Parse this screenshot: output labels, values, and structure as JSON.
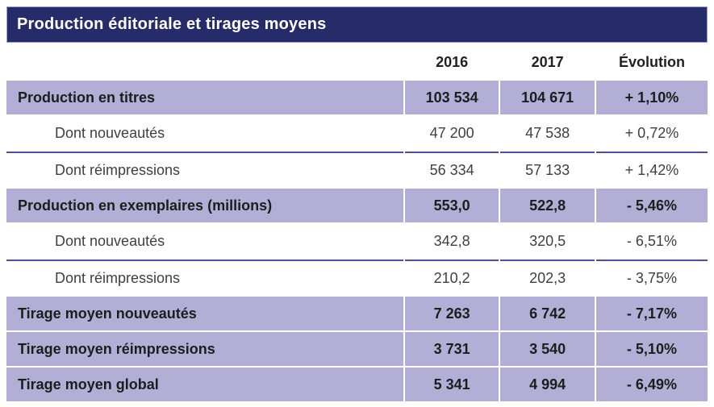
{
  "title": "Production éditoriale et tirages moyens",
  "colors": {
    "title_bar_bg": "#262c6a",
    "highlight_row_bg": "#b2aed6",
    "divider_line": "#4d4f99",
    "text": "#231f20"
  },
  "table": {
    "columns": [
      "",
      "2016",
      "2017",
      "Évolution"
    ],
    "rows": [
      {
        "label": "Production en titres",
        "v2016": "103 534",
        "v2017": "104 671",
        "evolution": "+ 1,10%"
      },
      {
        "label": "Dont nouveautés",
        "v2016": "47 200",
        "v2017": "47 538",
        "evolution": "+ 0,72%"
      },
      {
        "label": "Dont réimpressions",
        "v2016": "56 334",
        "v2017": "57 133",
        "evolution": "+ 1,42%"
      },
      {
        "label": "Production en exemplaires (millions)",
        "v2016": "553,0",
        "v2017": "522,8",
        "evolution": "- 5,46%"
      },
      {
        "label": "Dont nouveautés",
        "v2016": "342,8",
        "v2017": "320,5",
        "evolution": "- 6,51%"
      },
      {
        "label": "Dont réimpressions",
        "v2016": "210,2",
        "v2017": "202,3",
        "evolution": "- 3,75%"
      },
      {
        "label": "Tirage moyen nouveautés",
        "v2016": "7 263",
        "v2017": "6 742",
        "evolution": "- 7,17%"
      },
      {
        "label": "Tirage moyen réimpressions",
        "v2016": "3 731",
        "v2017": "3 540",
        "evolution": "- 5,10%"
      },
      {
        "label": "Tirage moyen global",
        "v2016": "5 341",
        "v2017": "4 994",
        "evolution": "- 6,49%"
      }
    ]
  },
  "chart_data": {
    "type": "table",
    "title": "Production éditoriale et tirages moyens",
    "columns": [
      "2016",
      "2017",
      "Évolution"
    ],
    "rows": [
      {
        "label": "Production en titres",
        "2016": 103534,
        "2017": 104671,
        "evolution_pct": 1.1
      },
      {
        "label": "Dont nouveautés (titres)",
        "2016": 47200,
        "2017": 47538,
        "evolution_pct": 0.72
      },
      {
        "label": "Dont réimpressions (titres)",
        "2016": 56334,
        "2017": 57133,
        "evolution_pct": 1.42
      },
      {
        "label": "Production en exemplaires (millions)",
        "2016": 553.0,
        "2017": 522.8,
        "evolution_pct": -5.46
      },
      {
        "label": "Dont nouveautés (exemplaires)",
        "2016": 342.8,
        "2017": 320.5,
        "evolution_pct": -6.51
      },
      {
        "label": "Dont réimpressions (exemplaires)",
        "2016": 210.2,
        "2017": 202.3,
        "evolution_pct": -3.75
      },
      {
        "label": "Tirage moyen nouveautés",
        "2016": 7263,
        "2017": 6742,
        "evolution_pct": -7.17
      },
      {
        "label": "Tirage moyen réimpressions",
        "2016": 3731,
        "2017": 3540,
        "evolution_pct": -5.1
      },
      {
        "label": "Tirage moyen global",
        "2016": 5341,
        "2017": 4994,
        "evolution_pct": -6.49
      }
    ]
  }
}
